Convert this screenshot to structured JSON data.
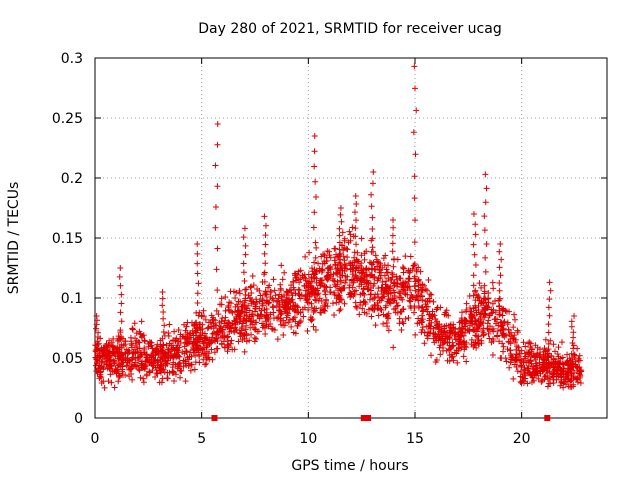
{
  "chart_data": {
    "type": "scatter",
    "title": "Day 280 of 2021, SRMTID for receiver ucag",
    "xlabel": "GPS time / hours",
    "ylabel": "SRMTID / TECUs",
    "xlim": [
      0,
      24
    ],
    "ylim": [
      0,
      0.3
    ],
    "grid": true,
    "x_ticks": [
      0,
      5,
      10,
      15,
      20
    ],
    "y_ticks": [
      0,
      0.05,
      0.1,
      0.15,
      0.2,
      0.25,
      0.3
    ],
    "x_tick_labels": [
      "0",
      "5",
      "10",
      "15",
      "20"
    ],
    "y_tick_labels": [
      "0",
      "0.05",
      "0.1",
      "0.15",
      "0.2",
      "0.25",
      "0.3"
    ],
    "marker": "plus",
    "series": [
      {
        "name": "SRMTID",
        "color": "#e00000",
        "time_range_hours": [
          0.0,
          22.8
        ],
        "profile": [
          {
            "x": 0.0,
            "median": 0.05,
            "spread": 0.018
          },
          {
            "x": 1.0,
            "median": 0.05,
            "spread": 0.02
          },
          {
            "x": 2.0,
            "median": 0.055,
            "spread": 0.02
          },
          {
            "x": 3.0,
            "median": 0.048,
            "spread": 0.02
          },
          {
            "x": 4.0,
            "median": 0.055,
            "spread": 0.02
          },
          {
            "x": 5.0,
            "median": 0.065,
            "spread": 0.022
          },
          {
            "x": 6.0,
            "median": 0.075,
            "spread": 0.022
          },
          {
            "x": 7.0,
            "median": 0.085,
            "spread": 0.025
          },
          {
            "x": 8.0,
            "median": 0.09,
            "spread": 0.025
          },
          {
            "x": 9.0,
            "median": 0.095,
            "spread": 0.025
          },
          {
            "x": 10.0,
            "median": 0.105,
            "spread": 0.028
          },
          {
            "x": 11.0,
            "median": 0.115,
            "spread": 0.03
          },
          {
            "x": 12.0,
            "median": 0.12,
            "spread": 0.03
          },
          {
            "x": 13.0,
            "median": 0.11,
            "spread": 0.03
          },
          {
            "x": 14.0,
            "median": 0.1,
            "spread": 0.028
          },
          {
            "x": 15.0,
            "median": 0.11,
            "spread": 0.03
          },
          {
            "x": 16.0,
            "median": 0.07,
            "spread": 0.022
          },
          {
            "x": 17.0,
            "median": 0.065,
            "spread": 0.02
          },
          {
            "x": 18.0,
            "median": 0.09,
            "spread": 0.03
          },
          {
            "x": 19.0,
            "median": 0.08,
            "spread": 0.028
          },
          {
            "x": 20.0,
            "median": 0.045,
            "spread": 0.018
          },
          {
            "x": 21.0,
            "median": 0.045,
            "spread": 0.018
          },
          {
            "x": 22.0,
            "median": 0.04,
            "spread": 0.016
          },
          {
            "x": 22.8,
            "median": 0.04,
            "spread": 0.016
          }
        ],
        "peaks": [
          {
            "x": 5.7,
            "y": 0.245
          },
          {
            "x": 10.3,
            "y": 0.235
          },
          {
            "x": 13.0,
            "y": 0.205
          },
          {
            "x": 15.0,
            "y": 0.293
          },
          {
            "x": 18.3,
            "y": 0.203
          },
          {
            "x": 0.1,
            "y": 0.085
          },
          {
            "x": 1.2,
            "y": 0.125
          },
          {
            "x": 3.2,
            "y": 0.105
          },
          {
            "x": 4.8,
            "y": 0.145
          },
          {
            "x": 7.0,
            "y": 0.158
          },
          {
            "x": 8.0,
            "y": 0.168
          },
          {
            "x": 11.5,
            "y": 0.175
          },
          {
            "x": 12.2,
            "y": 0.185
          },
          {
            "x": 14.0,
            "y": 0.165
          },
          {
            "x": 17.8,
            "y": 0.17
          },
          {
            "x": 19.0,
            "y": 0.145
          },
          {
            "x": 21.3,
            "y": 0.113
          },
          {
            "x": 22.4,
            "y": 0.085
          }
        ]
      }
    ],
    "gap_markers_hours": [
      5.6,
      12.6,
      12.8,
      21.2
    ]
  }
}
